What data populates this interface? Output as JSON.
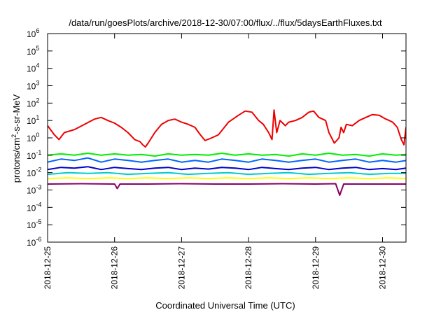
{
  "chart_data": {
    "type": "line",
    "title": "/data/run/goesPlots/archive/2018-12-30/07:00/flux/../flux/5daysEarthFluxes.txt",
    "xlabel": "Coordinated Universal Time (UTC)",
    "ylabel_base": "protons/cm",
    "ylabel_sup": "2",
    "ylabel_tail": "-s-sr-MeV",
    "y_scale": "log",
    "ylim_exp": [
      -6,
      6
    ],
    "y_ticks": [
      {
        "base": "10",
        "exp": "-6",
        "value": -6
      },
      {
        "base": "10",
        "exp": "-5",
        "value": -5
      },
      {
        "base": "10",
        "exp": "-4",
        "value": -4
      },
      {
        "base": "10",
        "exp": "-3",
        "value": -3
      },
      {
        "base": "10",
        "exp": "-2",
        "value": -2
      },
      {
        "base": "10",
        "exp": "-1",
        "value": -1
      },
      {
        "base": "10",
        "exp": "0",
        "value": 0
      },
      {
        "base": "10",
        "exp": "1",
        "value": 1
      },
      {
        "base": "10",
        "exp": "2",
        "value": 2
      },
      {
        "base": "10",
        "exp": "3",
        "value": 3
      },
      {
        "base": "10",
        "exp": "4",
        "value": 4
      },
      {
        "base": "10",
        "exp": "5",
        "value": 5
      },
      {
        "base": "10",
        "exp": "6",
        "value": 6
      }
    ],
    "x_range_days": [
      0,
      5.35
    ],
    "x_ticks": [
      {
        "label": "2018-12-25",
        "value": 0
      },
      {
        "label": "2018-12-26",
        "value": 1
      },
      {
        "label": "2018-12-27",
        "value": 2
      },
      {
        "label": "2018-12-28",
        "value": 3
      },
      {
        "label": "2018-12-29",
        "value": 4
      },
      {
        "label": "2018-12-30",
        "value": 5
      }
    ],
    "grid": false,
    "legend": "none",
    "series": [
      {
        "color": "#ee0000",
        "x": [
          0.0,
          0.1,
          0.17,
          0.25,
          0.4,
          0.55,
          0.7,
          0.8,
          0.9,
          1.0,
          1.1,
          1.2,
          1.3,
          1.38,
          1.42,
          1.46,
          1.5,
          1.6,
          1.7,
          1.8,
          1.9,
          2.0,
          2.1,
          2.2,
          2.28,
          2.35,
          2.45,
          2.55,
          2.7,
          2.85,
          2.95,
          3.05,
          3.15,
          3.22,
          3.3,
          3.35,
          3.38,
          3.42,
          3.47,
          3.55,
          3.6,
          3.7,
          3.8,
          3.9,
          3.97,
          4.05,
          4.15,
          4.2,
          4.28,
          4.35,
          4.38,
          4.42,
          4.46,
          4.55,
          4.65,
          4.75,
          4.85,
          4.95,
          5.05,
          5.1,
          5.15,
          5.22,
          5.28,
          5.32,
          5.35
        ],
        "y": [
          5,
          1.5,
          0.8,
          2,
          3,
          6,
          12,
          15,
          10,
          7,
          4,
          2,
          0.8,
          0.6,
          0.4,
          0.3,
          0.5,
          2,
          6,
          10,
          12,
          8,
          6,
          4,
          1.5,
          0.7,
          1,
          1.5,
          8,
          20,
          35,
          30,
          10,
          6,
          2,
          0.8,
          40,
          2,
          10,
          5,
          8,
          10,
          15,
          30,
          35,
          15,
          10,
          2,
          0.5,
          1,
          4,
          2,
          6,
          5,
          10,
          15,
          22,
          20,
          12,
          10,
          8,
          4,
          0.8,
          0.4,
          4
        ]
      },
      {
        "color": "#00ee00",
        "x": [
          0.0,
          0.2,
          0.4,
          0.6,
          0.8,
          1.0,
          1.2,
          1.4,
          1.6,
          1.8,
          2.0,
          2.2,
          2.4,
          2.6,
          2.8,
          3.0,
          3.2,
          3.4,
          3.6,
          3.8,
          4.0,
          4.2,
          4.4,
          4.6,
          4.8,
          5.0,
          5.2,
          5.35
        ],
        "y": [
          0.1,
          0.12,
          0.1,
          0.13,
          0.1,
          0.12,
          0.1,
          0.11,
          0.09,
          0.12,
          0.1,
          0.11,
          0.1,
          0.13,
          0.1,
          0.12,
          0.1,
          0.11,
          0.09,
          0.12,
          0.1,
          0.13,
          0.1,
          0.11,
          0.09,
          0.12,
          0.1,
          0.11
        ]
      },
      {
        "color": "#00cccc",
        "x": [
          0.0,
          0.3,
          0.6,
          0.9,
          1.2,
          1.5,
          1.8,
          2.1,
          2.4,
          2.7,
          3.0,
          3.3,
          3.6,
          3.9,
          4.2,
          4.5,
          4.8,
          5.1,
          5.35
        ],
        "y": [
          0.008,
          0.01,
          0.009,
          0.01,
          0.008,
          0.009,
          0.01,
          0.008,
          0.009,
          0.01,
          0.008,
          0.009,
          0.01,
          0.008,
          0.009,
          0.01,
          0.008,
          0.009,
          0.009
        ]
      },
      {
        "color": "#0066ff",
        "x": [
          0.0,
          0.2,
          0.4,
          0.6,
          0.8,
          1.0,
          1.2,
          1.4,
          1.6,
          1.8,
          2.0,
          2.2,
          2.4,
          2.6,
          2.8,
          3.0,
          3.2,
          3.4,
          3.6,
          3.8,
          4.0,
          4.2,
          4.4,
          4.6,
          4.8,
          5.0,
          5.2,
          5.35
        ],
        "y": [
          0.04,
          0.06,
          0.05,
          0.07,
          0.04,
          0.06,
          0.05,
          0.04,
          0.05,
          0.06,
          0.04,
          0.05,
          0.04,
          0.06,
          0.05,
          0.04,
          0.06,
          0.05,
          0.04,
          0.05,
          0.06,
          0.04,
          0.05,
          0.06,
          0.04,
          0.05,
          0.04,
          0.05
        ]
      },
      {
        "color": "#0000cc",
        "x": [
          0.0,
          0.2,
          0.4,
          0.6,
          0.8,
          1.0,
          1.2,
          1.4,
          1.6,
          1.8,
          2.0,
          2.2,
          2.4,
          2.6,
          2.8,
          3.0,
          3.2,
          3.4,
          3.6,
          3.8,
          4.0,
          4.2,
          4.4,
          4.6,
          4.8,
          5.0,
          5.2,
          5.35
        ],
        "y": [
          0.015,
          0.02,
          0.018,
          0.022,
          0.015,
          0.02,
          0.017,
          0.015,
          0.018,
          0.02,
          0.015,
          0.018,
          0.016,
          0.02,
          0.018,
          0.015,
          0.02,
          0.017,
          0.015,
          0.018,
          0.02,
          0.015,
          0.018,
          0.02,
          0.015,
          0.017,
          0.015,
          0.018
        ]
      },
      {
        "color": "#ffff00",
        "x": [
          0.0,
          0.3,
          0.6,
          0.9,
          1.2,
          1.5,
          1.8,
          2.1,
          2.4,
          2.7,
          3.0,
          3.3,
          3.6,
          3.9,
          4.2,
          4.5,
          4.8,
          5.1,
          5.35
        ],
        "y": [
          0.0045,
          0.005,
          0.0045,
          0.005,
          0.0045,
          0.005,
          0.0045,
          0.005,
          0.0045,
          0.005,
          0.0045,
          0.005,
          0.0045,
          0.005,
          0.0045,
          0.005,
          0.0045,
          0.005,
          0.0045
        ]
      },
      {
        "color": "#880066",
        "x": [
          0.0,
          0.5,
          1.0,
          1.04,
          1.08,
          1.5,
          2.0,
          2.5,
          3.0,
          3.5,
          4.0,
          4.3,
          4.36,
          4.42,
          4.5,
          5.0,
          5.35
        ],
        "y": [
          0.0022,
          0.0023,
          0.0022,
          0.0012,
          0.0022,
          0.0022,
          0.0023,
          0.0022,
          0.0022,
          0.0023,
          0.0022,
          0.0023,
          0.0005,
          0.0022,
          0.0022,
          0.0022,
          0.0022
        ]
      }
    ]
  }
}
